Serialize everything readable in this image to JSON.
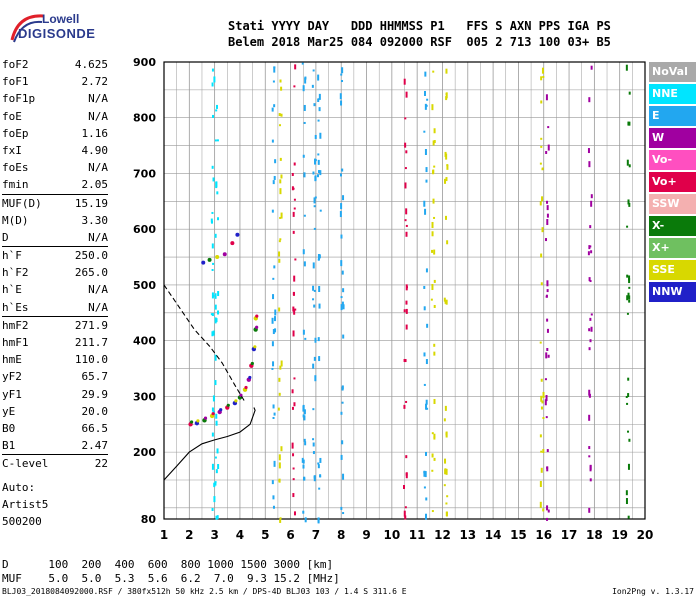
{
  "logo": {
    "line1": "Lowell",
    "line2": "DIGISONDE"
  },
  "header": {
    "line1": "Stati YYYY DAY   DDD HHMMSS P1   FFS S AXN PPS IGA PS",
    "line2": "Belem 2018 Mar25 084 092000 RSF  005 2 713 100 03+ B5"
  },
  "params_group1": [
    {
      "k": "foF2",
      "v": "4.625"
    },
    {
      "k": "foF1",
      "v": "2.72"
    },
    {
      "k": "foF1p",
      "v": "N/A"
    },
    {
      "k": "foE",
      "v": "N/A"
    },
    {
      "k": "foEp",
      "v": "1.16"
    },
    {
      "k": "fxI",
      "v": "4.90"
    },
    {
      "k": "foEs",
      "v": "N/A"
    },
    {
      "k": "fmin",
      "v": "2.05"
    }
  ],
  "params_group2": [
    {
      "k": "MUF(D)",
      "v": "15.19"
    },
    {
      "k": "M(D)",
      "v": "3.30"
    },
    {
      "k": "D",
      "v": "N/A"
    }
  ],
  "params_group3": [
    {
      "k": "h`F",
      "v": "250.0"
    },
    {
      "k": "h`F2",
      "v": "265.0"
    },
    {
      "k": "h`E",
      "v": "N/A"
    },
    {
      "k": "h`Es",
      "v": "N/A"
    }
  ],
  "params_group4": [
    {
      "k": "hmF2",
      "v": "271.9"
    },
    {
      "k": "hmF1",
      "v": "211.7"
    },
    {
      "k": "hmE",
      "v": "110.0"
    },
    {
      "k": "yF2",
      "v": "65.7"
    },
    {
      "k": "yF1",
      "v": "29.9"
    },
    {
      "k": "yE",
      "v": "20.0"
    },
    {
      "k": "B0",
      "v": "66.5"
    },
    {
      "k": "B1",
      "v": "2.47"
    }
  ],
  "params_group5": [
    {
      "k": "C-level",
      "v": "22"
    }
  ],
  "auto": {
    "l1": "Auto:",
    "l2": "Artist5",
    "l3": "500200"
  },
  "legend": [
    {
      "label": "NoVal",
      "color": "#a9a9a9"
    },
    {
      "label": "NNE",
      "color": "#00e5ff"
    },
    {
      "label": "E",
      "color": "#22a7f0"
    },
    {
      "label": "W",
      "color": "#a000a0"
    },
    {
      "label": "Vo-",
      "color": "#ff4fc0"
    },
    {
      "label": "Vo+",
      "color": "#e0004a"
    },
    {
      "label": "SSW",
      "color": "#f4b0b0"
    },
    {
      "label": "X-",
      "color": "#0a7a0a"
    },
    {
      "label": "X+",
      "color": "#6fc060"
    },
    {
      "label": "SSE",
      "color": "#d8d800"
    },
    {
      "label": "NNW",
      "color": "#2020c8"
    }
  ],
  "footer": {
    "line1": "D      100  200  400  600  800 1000 1500 3000 [km]",
    "line2": "MUF    5.0  5.0  5.3  5.6  6.2  7.0  9.3 15.2 [MHz]",
    "line3": "BLJ03_2018084092000.RSF / 380fx512h 50 kHz 2.5 km / DPS-4D BLJ03 103 / 1.4 S 311.6 E",
    "line4": "Ion2Png v. 1.3.17"
  },
  "chart_data": {
    "type": "scatter",
    "xlim": [
      1,
      20
    ],
    "ylim": [
      80,
      900
    ],
    "xticks": [
      1,
      2,
      3,
      4,
      5,
      6,
      7,
      8,
      9,
      10,
      11,
      12,
      13,
      14,
      15,
      16,
      17,
      18,
      19,
      20
    ],
    "yticks": [
      80,
      200,
      300,
      400,
      500,
      600,
      700,
      800,
      900
    ],
    "x_minor_step": 0.5,
    "y_grid_step": 50,
    "grid": true,
    "series": [
      {
        "values": [
          [
            2.05,
            250
          ],
          [
            2.3,
            252
          ],
          [
            2.6,
            257
          ],
          [
            2.9,
            265
          ],
          [
            3.2,
            272
          ],
          [
            3.5,
            280
          ],
          [
            3.8,
            288
          ],
          [
            4.0,
            298
          ],
          [
            4.2,
            312
          ],
          [
            4.35,
            330
          ],
          [
            4.45,
            355
          ],
          [
            4.55,
            385
          ],
          [
            4.62,
            420
          ],
          [
            4.625,
            440
          ]
        ]
      },
      {
        "values": [
          [
            2.55,
            540
          ],
          [
            2.8,
            545
          ],
          [
            3.1,
            550
          ],
          [
            3.4,
            555
          ],
          [
            3.7,
            575
          ],
          [
            3.9,
            590
          ]
        ]
      },
      {
        "values": [
          [
            1.0,
            150
          ],
          [
            1.5,
            175
          ],
          [
            2.0,
            200
          ],
          [
            2.5,
            215
          ],
          [
            3.0,
            222
          ],
          [
            3.5,
            228
          ],
          [
            4.0,
            236
          ],
          [
            4.4,
            250
          ],
          [
            4.6,
            275
          ],
          [
            4.55,
            280
          ]
        ]
      },
      {
        "values": [
          [
            1.0,
            500
          ],
          [
            1.6,
            460
          ],
          [
            2.2,
            420
          ],
          [
            2.8,
            390
          ],
          [
            3.3,
            360
          ],
          [
            3.8,
            320
          ],
          [
            4.2,
            290
          ]
        ]
      }
    ],
    "noise_columns": [
      {
        "x": 2.9,
        "color": "#00e5ff"
      },
      {
        "x": 3.05,
        "color": "#00e5ff"
      },
      {
        "x": 5.3,
        "color": "#22a7f0"
      },
      {
        "x": 5.55,
        "color": "#d8d800"
      },
      {
        "x": 6.1,
        "color": "#e0004a"
      },
      {
        "x": 6.5,
        "color": "#22a7f0"
      },
      {
        "x": 6.9,
        "color": "#22a7f0"
      },
      {
        "x": 7.1,
        "color": "#22a7f0"
      },
      {
        "x": 8.0,
        "color": "#22a7f0"
      },
      {
        "x": 10.5,
        "color": "#e0004a"
      },
      {
        "x": 11.3,
        "color": "#22a7f0"
      },
      {
        "x": 11.6,
        "color": "#d8d800"
      },
      {
        "x": 12.1,
        "color": "#d8d800"
      },
      {
        "x": 15.9,
        "color": "#d8d800"
      },
      {
        "x": 16.1,
        "color": "#a000a0"
      },
      {
        "x": 17.8,
        "color": "#a000a0"
      },
      {
        "x": 19.3,
        "color": "#0a7a0a"
      }
    ]
  }
}
